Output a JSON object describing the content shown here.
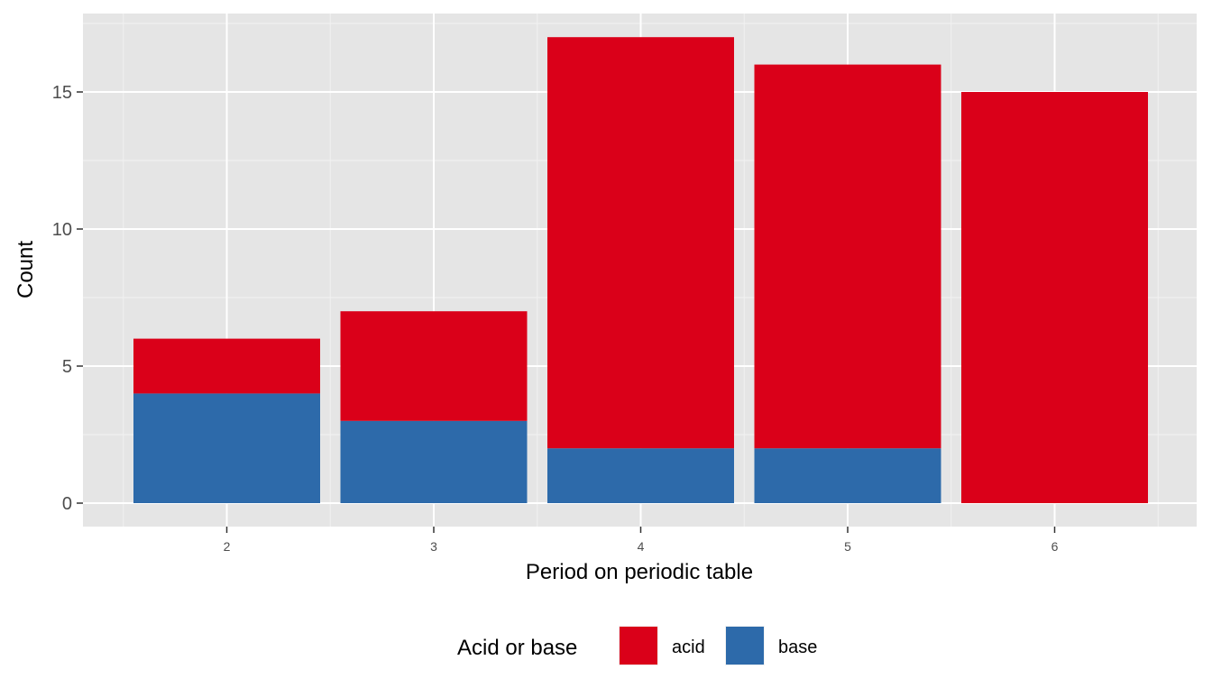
{
  "chart_data": {
    "type": "bar",
    "stacked": true,
    "categories": [
      "2",
      "3",
      "4",
      "5",
      "6"
    ],
    "series": [
      {
        "name": "acid",
        "values": [
          2,
          4,
          15,
          14,
          15
        ],
        "color": "#DA0019"
      },
      {
        "name": "base",
        "values": [
          4,
          3,
          2,
          2,
          0
        ],
        "color": "#2D6AAA"
      }
    ],
    "xlabel": "Period on periodic table",
    "ylabel": "Count",
    "ylim": [
      0,
      17.85
    ],
    "yticks": [
      "0",
      "5",
      "10",
      "15"
    ],
    "grid": true,
    "panel_background": "#E5E5E5",
    "legend": {
      "title": "Acid or base",
      "position": "bottom",
      "items": [
        {
          "label": "acid",
          "color": "#DA0019"
        },
        {
          "label": "base",
          "color": "#2D6AAA"
        }
      ]
    }
  }
}
